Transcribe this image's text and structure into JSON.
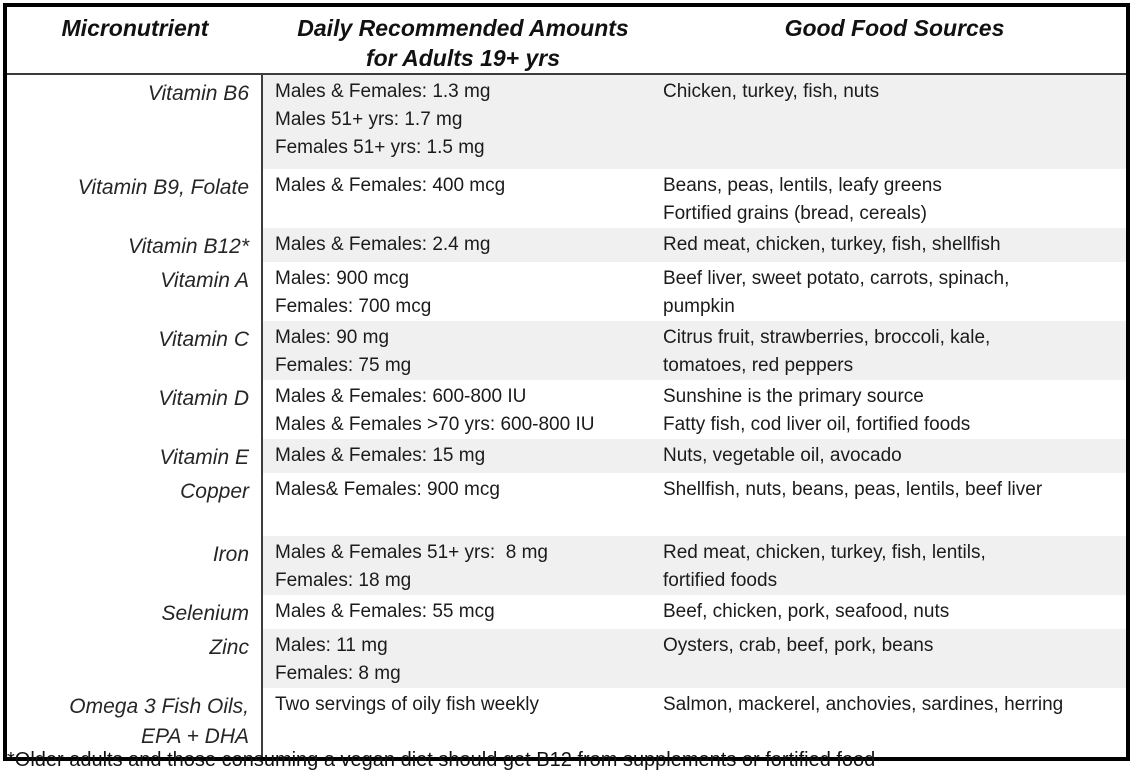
{
  "table": {
    "headers": [
      "Micronutrient",
      "Daily Recommended Amounts\nfor Adults 19+ yrs",
      "Good Food Sources"
    ],
    "rows": [
      {
        "nutrient": "Vitamin B6",
        "amounts": [
          "Males & Females: 1.3 mg",
          "Males 51+ yrs: 1.7 mg",
          "Females 51+ yrs: 1.5 mg"
        ],
        "sources": [
          "Chicken, turkey, fish, nuts"
        ],
        "shaded": true
      },
      {
        "nutrient": "Vitamin B9, Folate",
        "amounts": [
          "Males & Females: 400 mcg"
        ],
        "sources": [
          "Beans, peas, lentils, leafy greens",
          "Fortified grains (bread, cereals)"
        ],
        "shaded": false
      },
      {
        "nutrient": "Vitamin B12*",
        "amounts": [
          "Males & Females: 2.4 mg"
        ],
        "sources": [
          "Red meat, chicken, turkey, fish, shellfish"
        ],
        "shaded": true
      },
      {
        "nutrient": "Vitamin A",
        "amounts": [
          "Males: 900 mcg",
          "Females: 700 mcg"
        ],
        "sources": [
          "Beef liver, sweet potato, carrots, spinach,",
          "pumpkin"
        ],
        "shaded": false
      },
      {
        "nutrient": "Vitamin C",
        "amounts": [
          "Males: 90 mg",
          "Females: 75 mg"
        ],
        "sources": [
          "Citrus fruit, strawberries, broccoli, kale,",
          "tomatoes, red peppers"
        ],
        "shaded": true
      },
      {
        "nutrient": "Vitamin D",
        "amounts": [
          "Males & Females: 600-800 IU",
          "Males & Females >70 yrs: 600-800 IU"
        ],
        "sources": [
          "Sunshine is the primary source",
          "Fatty fish, cod liver oil, fortified foods"
        ],
        "shaded": false
      },
      {
        "nutrient": "Vitamin E",
        "amounts": [
          "Males & Females: 15 mg"
        ],
        "sources": [
          "Nuts, vegetable oil, avocado"
        ],
        "shaded": true
      },
      {
        "nutrient": "Copper",
        "amounts": [
          "Males& Females: 900 mcg"
        ],
        "sources": [
          "Shellfish, nuts, beans, peas, lentils, beef liver"
        ],
        "shaded": false
      },
      {
        "nutrient": "Iron",
        "amounts": [
          "Males & Females 51+ yrs:  8 mg",
          "Females: 18 mg"
        ],
        "sources": [
          "Red meat, chicken, turkey, fish, lentils,",
          "fortified foods"
        ],
        "shaded": true
      },
      {
        "nutrient": "Selenium",
        "amounts": [
          "Males & Females: 55 mcg"
        ],
        "sources": [
          "Beef, chicken, pork, seafood, nuts"
        ],
        "shaded": false
      },
      {
        "nutrient": "Zinc",
        "amounts": [
          "Males: 11 mg",
          "Females: 8 mg"
        ],
        "sources": [
          "Oysters, crab, beef, pork, beans"
        ],
        "shaded": true
      },
      {
        "nutrient": "Omega 3 Fish Oils,\nEPA + DHA",
        "amounts": [
          "Two servings of oily fish weekly"
        ],
        "sources": [
          "Salmon, mackerel, anchovies, sardines, herring"
        ],
        "shaded": false
      }
    ]
  },
  "footnote": "*Older adults and those consuming a vegan diet should get B12 from supplements or fortified food"
}
